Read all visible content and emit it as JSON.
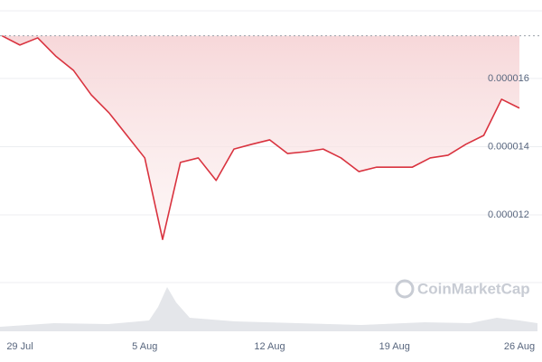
{
  "chart_data": {
    "type": "line",
    "x": [
      "28 Jul",
      "29 Jul",
      "30 Jul",
      "31 Jul",
      "1 Aug",
      "2 Aug",
      "3 Aug",
      "4 Aug",
      "5 Aug",
      "6 Aug",
      "7 Aug",
      "8 Aug",
      "9 Aug",
      "10 Aug",
      "11 Aug",
      "12 Aug",
      "13 Aug",
      "14 Aug",
      "15 Aug",
      "16 Aug",
      "17 Aug",
      "18 Aug",
      "19 Aug",
      "20 Aug",
      "21 Aug",
      "22 Aug",
      "23 Aug",
      "24 Aug",
      "25 Aug",
      "26 Aug"
    ],
    "series": [
      {
        "color": "#d9333f",
        "values": [
          1.725e-05,
          1.698e-05,
          1.719e-05,
          1.666e-05,
          1.624e-05,
          1.552e-05,
          1.499e-05,
          1.433e-05,
          1.367e-05,
          1.128e-05,
          1.354e-05,
          1.367e-05,
          1.301e-05,
          1.393e-05,
          1.407e-05,
          1.42e-05,
          1.38e-05,
          1.385e-05,
          1.393e-05,
          1.367e-05,
          1.327e-05,
          1.34e-05,
          1.34e-05,
          1.34e-05,
          1.367e-05,
          1.375e-05,
          1.407e-05,
          1.433e-05,
          1.539e-05,
          1.513e-05
        ]
      }
    ],
    "xticks": [
      "29 Jul",
      "5 Aug",
      "12 Aug",
      "19 Aug",
      "26 Aug"
    ],
    "ylim": [
      1.036e-05,
      1.83e-05
    ],
    "yticks": [
      1.2e-05,
      1.4e-05,
      1.6e-05
    ],
    "grid": true,
    "watermark": "CoinMarketCap"
  }
}
